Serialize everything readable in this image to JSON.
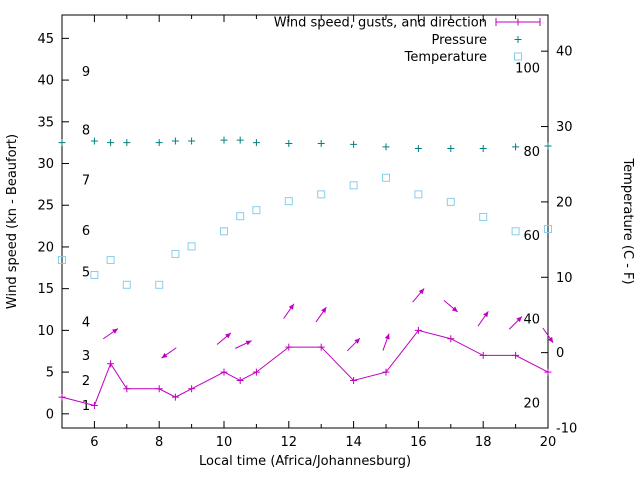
{
  "chart_data": {
    "type": "line",
    "title": "",
    "xlabel": "Local time (Africa/Johannesburg)",
    "ylabel_left": "Wind speed (kn - Beaufort)",
    "ylabel_right": "Temperature (C - F)",
    "x_range": [
      5,
      20
    ],
    "x_major_ticks": [
      6,
      8,
      10,
      12,
      14,
      16,
      18,
      20
    ],
    "x_minor_ticks": [
      5,
      7,
      9,
      11,
      13,
      15,
      17,
      19
    ],
    "y_left_range": [
      -1.7,
      47.8
    ],
    "y_left_ticks": [
      0,
      5,
      10,
      15,
      20,
      25,
      30,
      35,
      40,
      45
    ],
    "y_right_range_c": [
      -10,
      44.8
    ],
    "y_right_ticks_c": [
      -10,
      0,
      10,
      20,
      30,
      40
    ],
    "beaufort_scale_labels": [
      {
        "label": "1",
        "kn": 1
      },
      {
        "label": "2",
        "kn": 4
      },
      {
        "label": "3",
        "kn": 7
      },
      {
        "label": "4",
        "kn": 11
      },
      {
        "label": "5",
        "kn": 17
      },
      {
        "label": "6",
        "kn": 22
      },
      {
        "label": "7",
        "kn": 28
      },
      {
        "label": "8",
        "kn": 34
      },
      {
        "label": "9",
        "kn": 41
      }
    ],
    "fahrenheit_scale_labels": [
      {
        "label": "20",
        "f": 20
      },
      {
        "label": "40",
        "f": 40
      },
      {
        "label": "60",
        "f": 60
      },
      {
        "label": "80",
        "f": 80
      },
      {
        "label": "100",
        "f": 100
      }
    ],
    "x": [
      5,
      6,
      6.5,
      7,
      8,
      8.5,
      9,
      10,
      10.5,
      11,
      12,
      13,
      14,
      15,
      16,
      17,
      18,
      19,
      20
    ],
    "series": [
      {
        "name": "Wind speed, gusts, and direction",
        "axis": "left",
        "color": "#bf00bf",
        "style": "line-plus",
        "values": [
          2,
          1,
          6,
          3,
          3,
          2,
          3,
          5,
          4,
          5,
          8,
          8,
          4,
          5,
          10,
          9,
          7,
          7,
          5
        ]
      },
      {
        "name": "Pressure",
        "axis": "left",
        "color": "#008080",
        "style": "plus",
        "values": [
          32.5,
          32.7,
          32.5,
          32.5,
          32.5,
          32.7,
          32.7,
          32.8,
          32.8,
          32.5,
          32.4,
          32.4,
          32.3,
          32.0,
          31.8,
          31.8,
          31.8,
          32.0,
          32.1
        ]
      },
      {
        "name": "Temperature",
        "axis": "right",
        "color": "#87ceeb",
        "style": "open-square",
        "values": [
          12.3,
          10.3,
          12.3,
          9.0,
          9.0,
          13.1,
          14.1,
          16.1,
          18.1,
          18.9,
          20.1,
          21.0,
          22.2,
          23.2,
          21.0,
          20.0,
          18.0,
          16.1,
          16.4
        ]
      }
    ],
    "wind_direction_arrows": [
      {
        "x": 6.5,
        "y": 9.6,
        "angle_deg": 35
      },
      {
        "x": 8.3,
        "y": 7.3,
        "angle_deg": 215
      },
      {
        "x": 10.0,
        "y": 9.0,
        "angle_deg": 40
      },
      {
        "x": 10.6,
        "y": 8.3,
        "angle_deg": 25
      },
      {
        "x": 12.0,
        "y": 12.3,
        "angle_deg": 55
      },
      {
        "x": 13.0,
        "y": 11.9,
        "angle_deg": 55
      },
      {
        "x": 14.0,
        "y": 8.3,
        "angle_deg": 45
      },
      {
        "x": 15.0,
        "y": 8.6,
        "angle_deg": 70
      },
      {
        "x": 16.0,
        "y": 14.2,
        "angle_deg": 50
      },
      {
        "x": 17.0,
        "y": 12.9,
        "angle_deg": -40
      },
      {
        "x": 18.0,
        "y": 11.4,
        "angle_deg": 55
      },
      {
        "x": 19.0,
        "y": 10.9,
        "angle_deg": 45
      },
      {
        "x": 20.0,
        "y": 9.4,
        "angle_deg": -55
      }
    ],
    "legend": {
      "position": "top-right",
      "entries": [
        {
          "label": "Wind speed, gusts, and direction",
          "series": 0
        },
        {
          "label": "Pressure",
          "series": 1
        },
        {
          "label": "Temperature",
          "series": 2
        }
      ]
    },
    "colors": {
      "wind": "#bf00bf",
      "pressure": "#008080",
      "temperature": "#87ceeb",
      "axis": "#000000",
      "background": "#ffffff"
    }
  }
}
